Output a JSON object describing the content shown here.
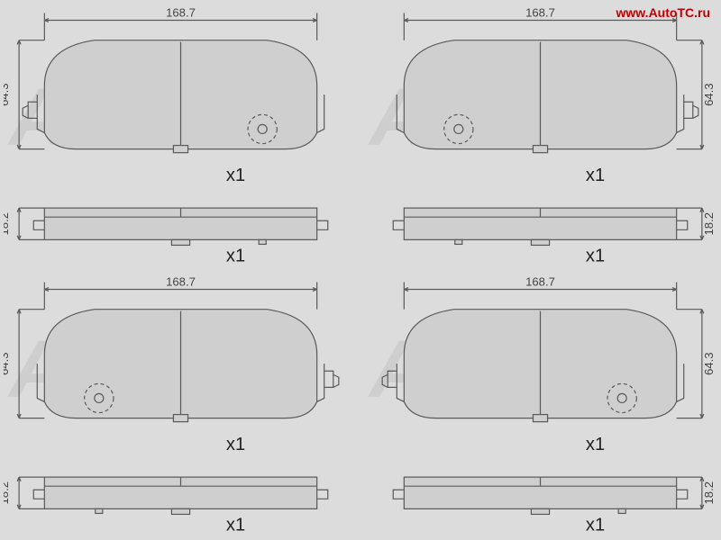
{
  "watermark_url": "www.AutoTC.ru",
  "watermark_text": "AutoTC",
  "dim_width": "168.7",
  "dim_height": "64.3",
  "dim_thick": "18.2",
  "qty_label": "x1",
  "colors": {
    "background": "#dcdcdc",
    "stroke": "#5a5a5a",
    "fill_pad": "#cfcfcf",
    "fill_plate": "#cfcfcf",
    "dim_text": "#444444",
    "url_text": "#c00000",
    "watermark": "rgba(180,180,180,0.35)"
  },
  "stroke_width": 1.2,
  "cells": [
    {
      "mirror": false,
      "sensor_side": "left"
    },
    {
      "mirror": true,
      "sensor_side": "right"
    },
    {
      "mirror": false,
      "sensor_side": "right"
    },
    {
      "mirror": true,
      "sensor_side": "left"
    }
  ]
}
